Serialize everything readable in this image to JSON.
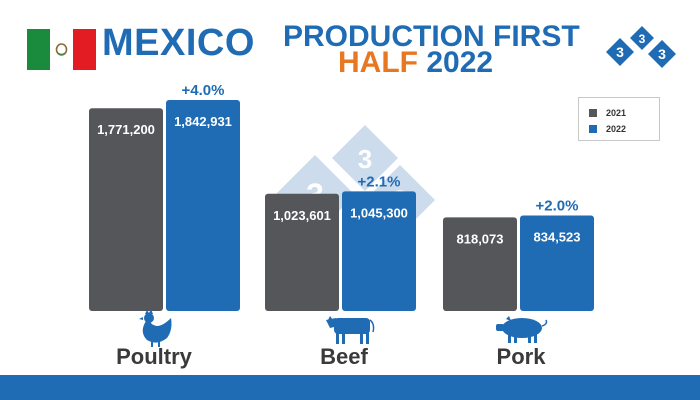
{
  "header": {
    "country": "MEXICO",
    "title_line1": "PRODUCTION FIRST",
    "title_line2_accent": "HALF",
    "title_line2_year": "2022"
  },
  "logo": {
    "digit": "3"
  },
  "icons": {
    "flag": "mexico-flag-icon",
    "logo": "333-logo-icon",
    "categories": [
      "chicken-icon",
      "cow-icon",
      "pig-icon"
    ]
  },
  "colors": {
    "bar_2021": "#54565a",
    "bar_2022": "#1f6cb5",
    "accent_orange": "#e87722",
    "brand_blue": "#1f6cb5"
  },
  "legend": {
    "items": [
      {
        "label": "2021",
        "color": "#54565a"
      },
      {
        "label": "2022",
        "color": "#1f6cb5"
      }
    ],
    "placement": "top-right"
  },
  "chart_data": {
    "type": "bar",
    "categories": [
      "Poultry",
      "Beef",
      "Pork"
    ],
    "series": [
      {
        "name": "2021",
        "values": [
          1771200,
          1023601,
          818073
        ],
        "labels": [
          "1,771,200",
          "1,023,601",
          "818,073"
        ]
      },
      {
        "name": "2022",
        "values": [
          1842931,
          1045300,
          834523
        ],
        "labels": [
          "1,842,931",
          "1,045,300",
          "834,523"
        ]
      }
    ],
    "changes": [
      "+4.0%",
      "+2.1%",
      "+2.0%"
    ],
    "title": "PRODUCTION FIRST HALF 2022",
    "xlabel": "",
    "ylabel": "",
    "grid": false,
    "legend": "top-right"
  }
}
